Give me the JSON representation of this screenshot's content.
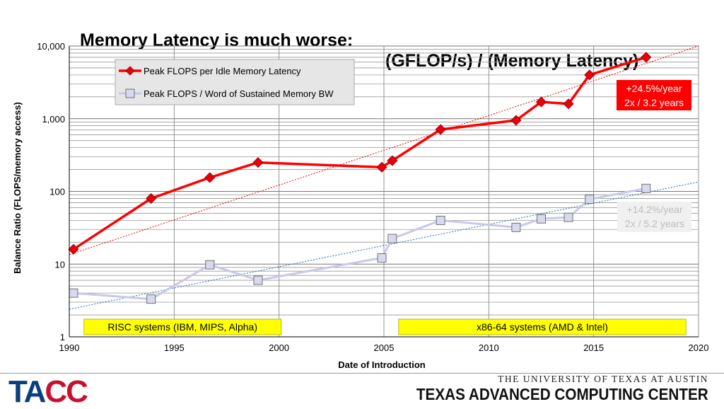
{
  "slide": {
    "title_left": "Memory Latency is much worse:",
    "title_right": "(GFLOP/s) / (Memory Latency)"
  },
  "footer": {
    "logo_part1": "TA",
    "logo_part2": "CC",
    "university": "THE UNIVERSITY OF TEXAS AT AUSTIN",
    "center_name": "TEXAS ADVANCED COMPUTING CENTER"
  },
  "colors": {
    "red_series": "#ff0000",
    "red_marker": "#e8000a",
    "lavender_series": "#c8c8e8",
    "lavender_marker": "#d8d8ee",
    "trend_red": "#e00000",
    "trend_blue": "#1a6fb0",
    "era_box": "#ffff00",
    "grid": "#888888",
    "annotation_red_bg": "#ff0000",
    "annotation_gray_bg": "#f0f0f0",
    "annotation_gray_text": "#bdbdbd",
    "logo_blue": "#0b3f7a",
    "logo_red": "#c8102e"
  },
  "chart_data": {
    "type": "line",
    "title": "",
    "xlabel": "Date of Introduction",
    "ylabel": "Balance Ratio (FLOPS/memory access)",
    "x_scale": "linear",
    "y_scale": "log",
    "xlim": [
      1990,
      2020
    ],
    "ylim": [
      1,
      10000
    ],
    "x_ticks": [
      1990,
      1995,
      2000,
      2005,
      2010,
      2015,
      2020
    ],
    "y_ticks": [
      {
        "value": 1,
        "label": "1"
      },
      {
        "value": 10,
        "label": "10"
      },
      {
        "value": 100,
        "label": "100"
      },
      {
        "value": 1000,
        "label": "1,000"
      },
      {
        "value": 10000,
        "label": "10,000"
      }
    ],
    "grid": true,
    "legend_position": "top-left",
    "series": [
      {
        "name": "Peak FLOPS per Idle Memory Latency",
        "marker": "diamond",
        "x": [
          1990.2,
          1993.9,
          1996.7,
          1999.0,
          2004.9,
          2005.4,
          2007.7,
          2011.3,
          2012.5,
          2013.8,
          2014.8,
          2017.5
        ],
        "y": [
          16,
          80,
          155,
          250,
          215,
          265,
          710,
          950,
          1700,
          1600,
          4000,
          7000
        ]
      },
      {
        "name": "Peak FLOPS / Word of Sustained Memory BW",
        "marker": "square",
        "x": [
          1990.2,
          1993.9,
          1996.7,
          1999.0,
          2004.9,
          2005.4,
          2007.7,
          2011.3,
          2012.5,
          2013.8,
          2014.8,
          2017.5
        ],
        "y": [
          4,
          3.3,
          9.8,
          6,
          12.2,
          22.5,
          40,
          32,
          42,
          44,
          78,
          110
        ]
      }
    ],
    "trendlines": [
      {
        "series": "Peak FLOPS per Idle Memory Latency",
        "x": [
          1990,
          2020
        ],
        "y": [
          13.5,
          10000
        ]
      },
      {
        "series": "Peak FLOPS / Word of Sustained Memory BW",
        "x": [
          1990,
          2020
        ],
        "y": [
          2.4,
          135
        ]
      }
    ],
    "annotations": [
      {
        "lines": [
          "+24.5%/year",
          "2x / 3.2 years"
        ],
        "style": "red"
      },
      {
        "lines": [
          "+14.2%/year",
          "2x / 5.2 years"
        ],
        "style": "gray"
      }
    ],
    "eras": [
      {
        "label": "RISC systems (IBM, MIPS, Alpha)",
        "x": [
          1990.7,
          2000.1
        ]
      },
      {
        "label": "x86-64 systems (AMD & Intel)",
        "x": [
          2005.7,
          2019.4
        ]
      }
    ]
  }
}
